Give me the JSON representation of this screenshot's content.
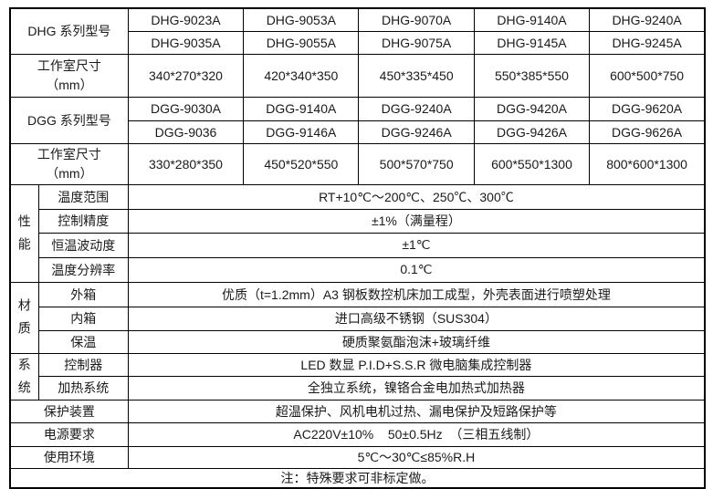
{
  "dhg": {
    "header": "DHG 系列型号",
    "size_header": {
      "line1": "工作室尺寸",
      "line2": "（mm）"
    },
    "models_row1": [
      "DHG-9023A",
      "DHG-9053A",
      "DHG-9070A",
      "DHG-9140A",
      "DHG-9240A"
    ],
    "models_row2": [
      "DHG-9035A",
      "DHG-9055A",
      "DHG-9075A",
      "DHG-9145A",
      "DHG-9245A"
    ],
    "sizes": [
      "340*270*320",
      "420*340*350",
      "450*335*450",
      "550*385*550",
      "600*500*750"
    ]
  },
  "dgg": {
    "header": "DGG 系列型号",
    "size_header": {
      "line1": "工作室尺寸",
      "line2": "（mm）"
    },
    "models_row1": [
      "DGG-9030A",
      "DGG-9140A",
      "DGG-9240A",
      "DGG-9420A",
      "DGG-9620A"
    ],
    "models_row2": [
      "DGG-9036",
      "DGG-9146A",
      "DGG-9246A",
      "DGG-9426A",
      "DGG-9626A"
    ],
    "sizes": [
      "330*280*350",
      "450*520*550",
      "500*570*750",
      "600*550*1300",
      "800*600*1300"
    ]
  },
  "groups": [
    {
      "label": "性能",
      "rows": [
        {
          "name": "温度范围",
          "value": "RT+10℃～200℃、250℃、300℃"
        },
        {
          "name": "控制精度",
          "value": "±1%（满量程）"
        },
        {
          "name": "恒温波动度",
          "value": "±1℃"
        },
        {
          "name": "温度分辨率",
          "value": "0.1℃"
        }
      ]
    },
    {
      "label": "材质",
      "rows": [
        {
          "name": "外箱",
          "value": "优质（t=1.2mm）A3 钢板数控机床加工成型，外壳表面进行喷塑处理"
        },
        {
          "name": "内箱",
          "value": "进口高级不锈钢（SUS304）"
        },
        {
          "name": "保温",
          "value": "硬质聚氨酯泡沫+玻璃纤维"
        }
      ]
    },
    {
      "label": "系统",
      "rows": [
        {
          "name": "控制器",
          "value": "LED 数显 P.I.D+S.S.R 微电脑集成控制器"
        },
        {
          "name": "加热系统",
          "value": "全独立系统，镍铬合金电加热式加热器"
        }
      ]
    }
  ],
  "bottom_rows": [
    {
      "name": "保护装置",
      "value": "超温保护、风机电机过热、漏电保护及短路保护等"
    },
    {
      "name": "电源要求",
      "value": "AC220V±10%    50±0.5Hz  （三相五线制）"
    },
    {
      "name": "使用环境",
      "value": "5℃～30℃≤85%R.H"
    }
  ],
  "note": "注：特殊要求可非标定做。",
  "colors": {
    "text": "#1a1a1a",
    "border": "#000000",
    "background": "#ffffff"
  }
}
